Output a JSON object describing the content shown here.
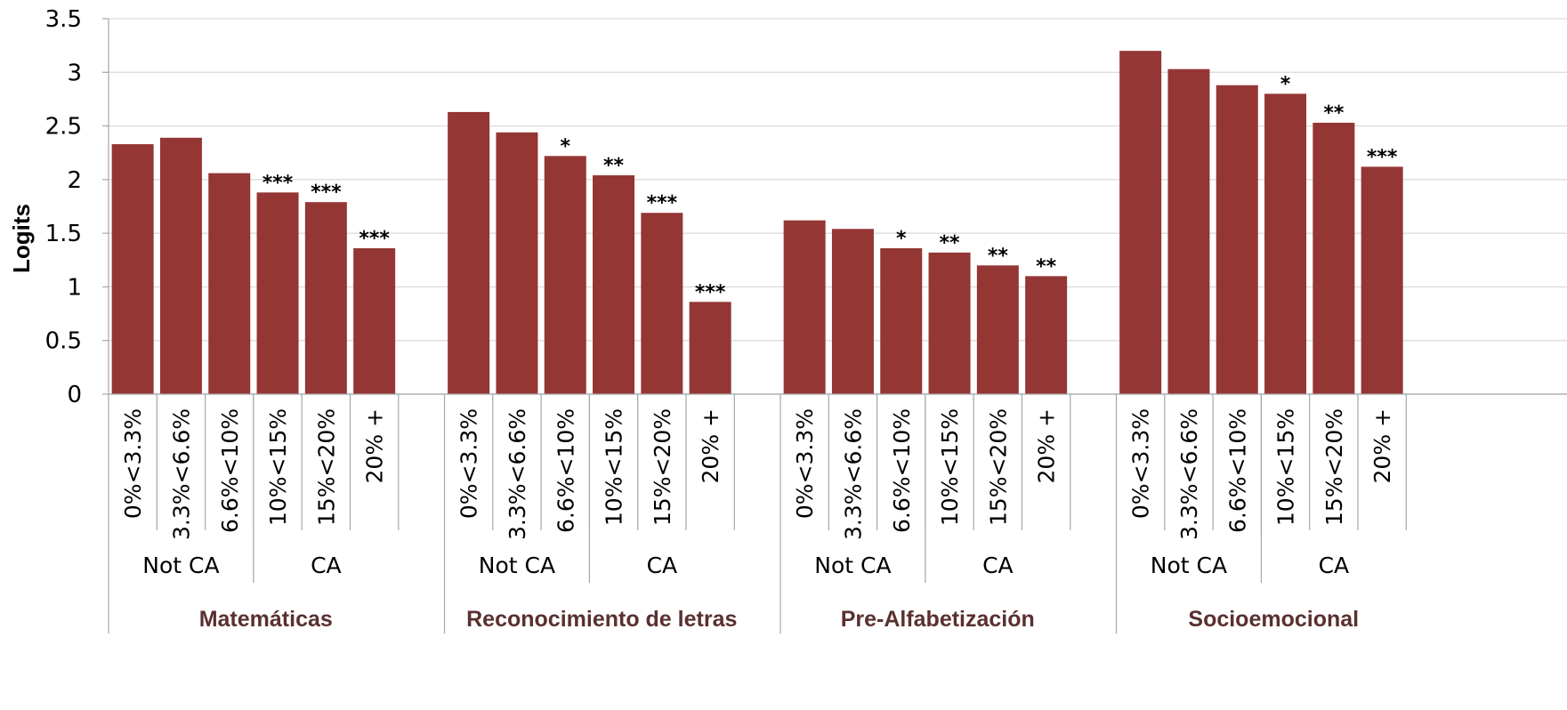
{
  "chart_data": {
    "type": "bar",
    "ylabel": "Logits",
    "ylim": [
      0,
      3.5
    ],
    "yticks": [
      "0",
      "0.5",
      "1",
      "1.5",
      "2",
      "2.5",
      "3",
      "3.5"
    ],
    "grid": true,
    "bar_color": "#943634",
    "categories": [
      "0%<3.3%",
      "3.3%<6.6%",
      "6.6%<10%",
      "10%<15%",
      "15%<20%",
      "20% +"
    ],
    "subgroups": [
      {
        "label": "Not CA",
        "span": 3
      },
      {
        "label": "CA",
        "span": 3
      }
    ],
    "panels": [
      {
        "name": "Matemáticas",
        "values": [
          2.33,
          2.39,
          2.06,
          1.88,
          1.79,
          1.36
        ],
        "significance": [
          "",
          "",
          "",
          "***",
          "***",
          "***"
        ]
      },
      {
        "name": "Reconocimiento de letras",
        "values": [
          2.63,
          2.44,
          2.22,
          2.04,
          1.69,
          0.86
        ],
        "significance": [
          "",
          "",
          "*",
          "**",
          "***",
          "***"
        ]
      },
      {
        "name": "Pre-Alfabetización",
        "values": [
          1.62,
          1.54,
          1.36,
          1.32,
          1.2,
          1.1
        ],
        "significance": [
          "",
          "",
          "*",
          "**",
          "**",
          "**"
        ]
      },
      {
        "name": "Socioemocional",
        "values": [
          3.2,
          3.03,
          2.88,
          2.8,
          2.53,
          2.12
        ],
        "significance": [
          "",
          "",
          "",
          "*",
          "**",
          "***"
        ]
      }
    ]
  }
}
